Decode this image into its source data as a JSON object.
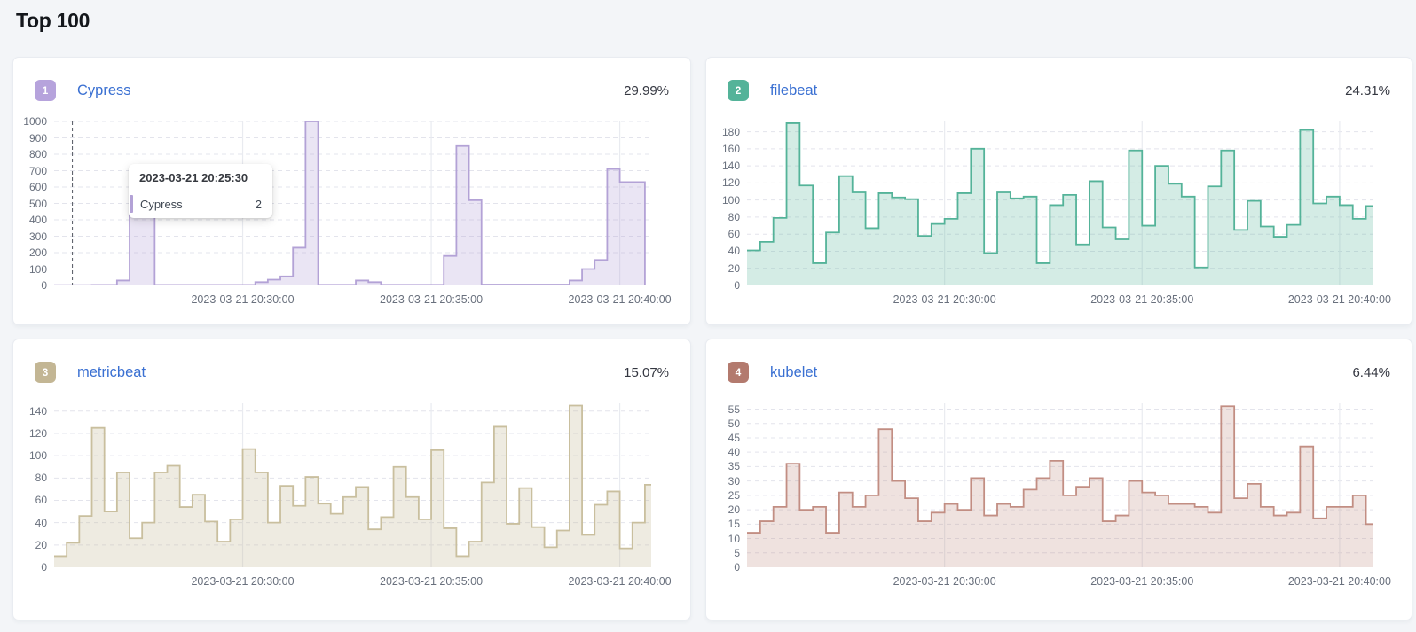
{
  "page": {
    "title": "Top 100"
  },
  "colors": {
    "link": "#3a70d2",
    "percent_text": "#343741",
    "axis_text": "#69707d",
    "page_bg": "#f3f5f8",
    "card_bg": "#ffffff",
    "grid_h_dashed": "#e3e4ec",
    "grid_v_solid": "#e9ebf0",
    "crosshair": "#61656e"
  },
  "cards": [
    {
      "rank": "1",
      "name": "Cypress",
      "percent": "29.99%",
      "badge_color": "#b6a3dc",
      "line_color": "#b3a2d6",
      "fill_color": "rgba(178,160,214,0.28)"
    },
    {
      "rank": "2",
      "name": "filebeat",
      "percent": "24.31%",
      "badge_color": "#54b399",
      "line_color": "#54b399",
      "fill_color": "rgba(84,179,153,0.25)"
    },
    {
      "rank": "3",
      "name": "metricbeat",
      "percent": "15.07%",
      "badge_color": "#c3b694",
      "line_color": "#c9bf9e",
      "fill_color": "rgba(195,183,148,0.28)"
    },
    {
      "rank": "4",
      "name": "kubelet",
      "percent": "6.44%",
      "badge_color": "#b37a6e",
      "line_color": "#c28e83",
      "fill_color": "rgba(194,142,131,0.26)"
    }
  ],
  "tooltip": {
    "date": "2023-03-21 20:25:30",
    "series": "Cypress",
    "value": "2"
  },
  "chart_data": [
    {
      "type": "area",
      "step": true,
      "title": "Cypress",
      "share_percent": "29.99%",
      "legend_position": "none",
      "grid": true,
      "x_tick_labels": [
        "2023-03-21 20:30:00",
        "2023-03-21 20:35:00",
        "2023-03-21 20:40:00"
      ],
      "x_tick_indices": [
        15,
        30,
        45
      ],
      "x_domain_steps": 47.5,
      "y_ticks": [
        0,
        100,
        200,
        300,
        400,
        500,
        600,
        700,
        800,
        900,
        1000
      ],
      "ylim": [
        0,
        1000
      ],
      "y_scale_max": 1000,
      "crosshair_index": 1.45,
      "hover_point": {
        "time": "2023-03-21 20:25:30",
        "value": 2
      },
      "values": [
        2,
        2,
        2,
        3,
        3,
        30,
        550,
        550,
        3,
        3,
        3,
        3,
        3,
        3,
        3,
        3,
        20,
        35,
        55,
        230,
        1000,
        4,
        4,
        4,
        30,
        20,
        4,
        4,
        4,
        4,
        4,
        180,
        850,
        520,
        5,
        5,
        5,
        5,
        5,
        5,
        5,
        30,
        100,
        155,
        710,
        630,
        630
      ]
    },
    {
      "type": "area",
      "step": true,
      "title": "filebeat",
      "share_percent": "24.31%",
      "legend_position": "none",
      "grid": true,
      "x_tick_labels": [
        "2023-03-21 20:30:00",
        "2023-03-21 20:35:00",
        "2023-03-21 20:40:00"
      ],
      "x_tick_indices": [
        15,
        30,
        45
      ],
      "x_domain_steps": 47.5,
      "y_ticks": [
        0,
        20,
        40,
        60,
        80,
        100,
        120,
        140,
        160,
        180
      ],
      "ylim": [
        0,
        192
      ],
      "y_scale_max": 192,
      "values": [
        41,
        51,
        79,
        190,
        117,
        26,
        62,
        128,
        109,
        67,
        108,
        103,
        101,
        58,
        72,
        78,
        108,
        160,
        38,
        109,
        102,
        104,
        26,
        94,
        106,
        48,
        122,
        68,
        54,
        158,
        70,
        140,
        119,
        104,
        21,
        116,
        158,
        65,
        99,
        69,
        57,
        71,
        182,
        96,
        104,
        94,
        78,
        93
      ]
    },
    {
      "type": "area",
      "step": true,
      "title": "metricbeat",
      "share_percent": "15.07%",
      "legend_position": "none",
      "grid": true,
      "x_tick_labels": [
        "2023-03-21 20:30:00",
        "2023-03-21 20:35:00",
        "2023-03-21 20:40:00"
      ],
      "x_tick_indices": [
        15,
        30,
        45
      ],
      "x_domain_steps": 47.5,
      "y_ticks": [
        0,
        20,
        40,
        60,
        80,
        100,
        120,
        140
      ],
      "ylim": [
        0,
        147
      ],
      "y_scale_max": 147,
      "values": [
        10,
        22,
        46,
        125,
        50,
        85,
        26,
        40,
        85,
        91,
        54,
        65,
        41,
        23,
        43,
        106,
        85,
        40,
        73,
        55,
        81,
        57,
        48,
        63,
        72,
        34,
        45,
        90,
        63,
        43,
        105,
        35,
        10,
        23,
        76,
        126,
        39,
        71,
        36,
        18,
        33,
        145,
        29,
        56,
        68,
        17,
        40,
        74
      ]
    },
    {
      "type": "area",
      "step": true,
      "title": "kubelet",
      "share_percent": "6.44%",
      "legend_position": "none",
      "grid": true,
      "x_tick_labels": [
        "2023-03-21 20:30:00",
        "2023-03-21 20:35:00",
        "2023-03-21 20:40:00"
      ],
      "x_tick_indices": [
        15,
        30,
        45
      ],
      "x_domain_steps": 47.5,
      "y_ticks": [
        0,
        5,
        10,
        15,
        20,
        25,
        30,
        35,
        40,
        45,
        50,
        55
      ],
      "ylim": [
        0,
        57
      ],
      "y_scale_max": 57,
      "values": [
        12,
        16,
        21,
        36,
        20,
        21,
        12,
        26,
        21,
        25,
        48,
        30,
        24,
        16,
        19,
        22,
        20,
        31,
        18,
        22,
        21,
        27,
        31,
        37,
        25,
        28,
        31,
        16,
        18,
        30,
        26,
        25,
        22,
        22,
        21,
        19,
        56,
        24,
        29,
        21,
        18,
        19,
        42,
        17,
        21,
        21,
        25,
        15,
        13
      ]
    }
  ]
}
